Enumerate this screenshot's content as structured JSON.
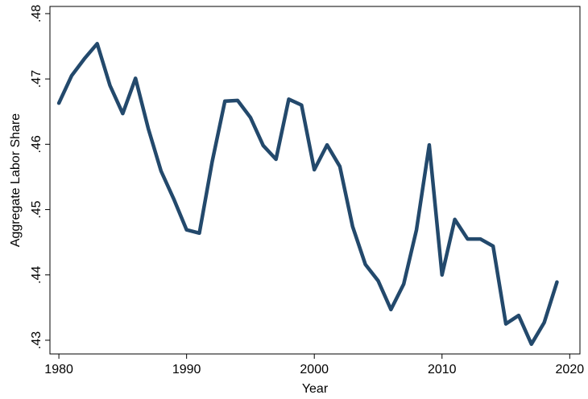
{
  "chart_data": {
    "type": "line",
    "x_label": "Year",
    "y_label": "Aggregate Labor Share",
    "x": [
      1980,
      1981,
      1982,
      1983,
      1984,
      1985,
      1986,
      1987,
      1988,
      1989,
      1990,
      1991,
      1992,
      1993,
      1994,
      1995,
      1996,
      1997,
      1998,
      1999,
      2000,
      2001,
      2002,
      2003,
      2004,
      2005,
      2006,
      2007,
      2008,
      2009,
      2010,
      2011,
      2012,
      2013,
      2014,
      2015,
      2016,
      2017,
      2018,
      2019
    ],
    "series": [
      {
        "name": "Aggregate Labor Share",
        "color": "#23496c",
        "values": [
          0.4663,
          0.4705,
          0.4731,
          0.4754,
          0.469,
          0.4647,
          0.4701,
          0.4624,
          0.4559,
          0.4516,
          0.4469,
          0.4464,
          0.4573,
          0.4666,
          0.4667,
          0.4641,
          0.4598,
          0.4577,
          0.4669,
          0.466,
          0.4561,
          0.4599,
          0.4566,
          0.4474,
          0.4416,
          0.4391,
          0.4347,
          0.4386,
          0.4469,
          0.4599,
          0.44,
          0.4485,
          0.4455,
          0.4455,
          0.4444,
          0.4325,
          0.4338,
          0.4294,
          0.4327,
          0.4389
        ]
      }
    ],
    "xlim": [
      1979.3,
      2020.8
    ],
    "ylim": [
      0.4279,
      0.4811
    ],
    "xticks": [
      1980,
      1990,
      2000,
      2010,
      2020
    ],
    "yticks": [
      {
        "value": 0.43,
        "label": ".43"
      },
      {
        "value": 0.44,
        "label": ".44"
      },
      {
        "value": 0.45,
        "label": ".45"
      },
      {
        "value": 0.46,
        "label": ".46"
      },
      {
        "value": 0.47,
        "label": ".47"
      },
      {
        "value": 0.48,
        "label": ".48"
      }
    ],
    "grid": false
  }
}
